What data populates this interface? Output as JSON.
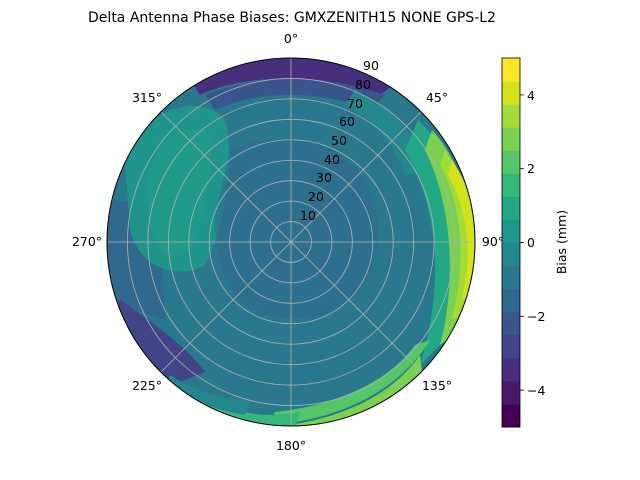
{
  "chart_data": {
    "type": "heatmap",
    "title": "Delta Antenna Phase Biases: GMXZENITH15     NONE GPS-L2",
    "projection": "polar",
    "angular_ticks": [
      "0°",
      "45°",
      "90°",
      "135°",
      "180°",
      "225°",
      "270°",
      "315°"
    ],
    "radial_ticks": [
      "10",
      "20",
      "30",
      "40",
      "50",
      "60",
      "70",
      "80",
      "90"
    ],
    "rlim": [
      0,
      90
    ],
    "grid": true,
    "colorbar": {
      "label": "Bias (mm)",
      "range": [
        -5,
        5
      ],
      "ticks": [
        "−4",
        "−2",
        "0",
        "2",
        "4"
      ],
      "levels": [
        -5,
        -4.5,
        -4,
        -3.5,
        -3,
        -2.5,
        -2,
        -1.5,
        -1,
        -0.5,
        0,
        0.5,
        1,
        1.5,
        2,
        2.5,
        3,
        3.5,
        4,
        4.5,
        5
      ],
      "colors": [
        "#440154",
        "#481a6c",
        "#472f7d",
        "#414487",
        "#39568c",
        "#31688e",
        "#2a788e",
        "#23888e",
        "#1f988b",
        "#22a884",
        "#35b779",
        "#54c568",
        "#7ad151",
        "#a5db36",
        "#d2e21b",
        "#fde725"
      ]
    },
    "regions": [
      {
        "name": "background",
        "value": -1.2
      },
      {
        "name": "east-rim",
        "value": 2.8
      },
      {
        "name": "east-rim-edge",
        "value": 4.6
      },
      {
        "name": "northwest-blob",
        "value": 1.2
      },
      {
        "name": "south-rim",
        "value": 2.2
      },
      {
        "name": "southwest-low",
        "value": -2.4
      },
      {
        "name": "north-rim",
        "value": -3.8
      }
    ]
  }
}
